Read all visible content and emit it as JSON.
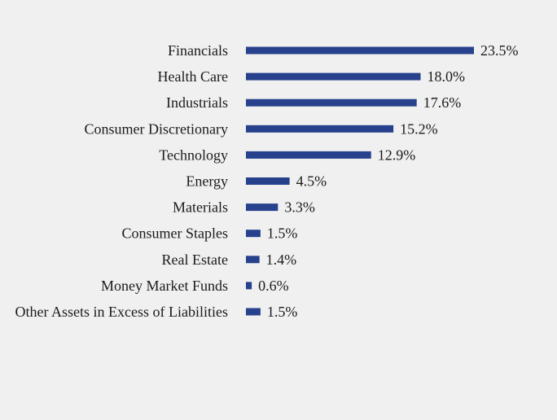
{
  "colors": {
    "bar": "#27418c",
    "background": "#f0f0f0",
    "text": "#1a1a1a"
  },
  "chart_data": {
    "type": "bar",
    "orientation": "horizontal",
    "categories": [
      "Financials",
      "Health Care",
      "Industrials",
      "Consumer Discretionary",
      "Technology",
      "Energy",
      "Materials",
      "Consumer Staples",
      "Real Estate",
      "Money Market Funds",
      "Other Assets in Excess of Liabilities"
    ],
    "values": [
      23.5,
      18.0,
      17.6,
      15.2,
      12.9,
      4.5,
      3.3,
      1.5,
      1.4,
      0.6,
      1.5
    ],
    "value_labels": [
      "23.5%",
      "18.0%",
      "17.6%",
      "15.2%",
      "12.9%",
      "4.5%",
      "3.3%",
      "1.5%",
      "1.4%",
      "0.6%",
      "1.5%"
    ],
    "title": "",
    "xlabel": "",
    "ylabel": "",
    "xlim": [
      0,
      23.5
    ],
    "grid": false,
    "legend": "none"
  }
}
